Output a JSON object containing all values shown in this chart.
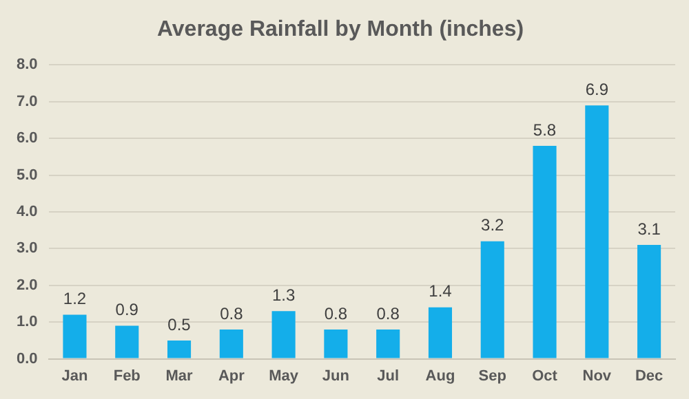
{
  "chart_data": {
    "type": "bar",
    "title": "Average Rainfall by Month (inches)",
    "categories": [
      "Jan",
      "Feb",
      "Mar",
      "Apr",
      "May",
      "Jun",
      "Jul",
      "Aug",
      "Sep",
      "Oct",
      "Nov",
      "Dec"
    ],
    "values": [
      1.2,
      0.9,
      0.5,
      0.8,
      1.3,
      0.8,
      0.8,
      1.4,
      3.2,
      5.8,
      6.9,
      3.1
    ],
    "color": "#14aeea",
    "ylim": [
      0,
      8
    ],
    "yticks": [
      {
        "value": 0,
        "label": "0.0"
      },
      {
        "value": 1,
        "label": "1.0"
      },
      {
        "value": 2,
        "label": "2.0"
      },
      {
        "value": 3,
        "label": "3.0"
      },
      {
        "value": 4,
        "label": "4.0"
      },
      {
        "value": 5,
        "label": "5.0"
      },
      {
        "value": 6,
        "label": "6.0"
      },
      {
        "value": 7,
        "label": "7.0"
      },
      {
        "value": 8,
        "label": "8.0"
      }
    ],
    "grid": "y",
    "data_labels": true
  }
}
